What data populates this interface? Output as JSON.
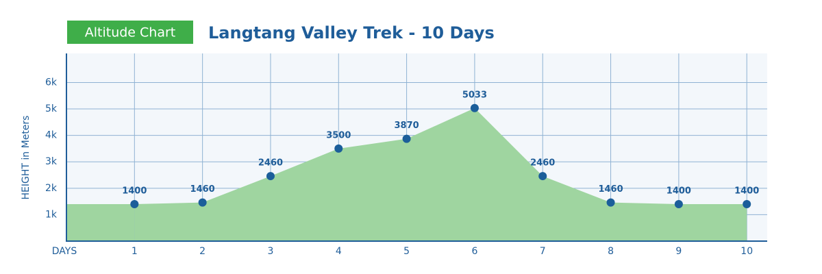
{
  "chart_data": {
    "type": "area",
    "badge": "Altitude Chart",
    "title": "Langtang Valley Trek - 10 Days",
    "y_label": "HEIGHT in Meters",
    "x_label": "DAYS",
    "x": [
      1,
      2,
      3,
      4,
      5,
      6,
      7,
      8,
      9,
      10
    ],
    "values": [
      1400,
      1460,
      2460,
      3500,
      3870,
      5033,
      2460,
      1460,
      1400,
      1400
    ],
    "color": "#9fd5a0",
    "marker_color": "#1b5e9a",
    "xlim": [
      0,
      10.3
    ],
    "ylim": [
      0,
      7100
    ],
    "yticks": [
      {
        "value": 1000,
        "label": "1k"
      },
      {
        "value": 2000,
        "label": "2k"
      },
      {
        "value": 3000,
        "label": "3k"
      },
      {
        "value": 4000,
        "label": "4k"
      },
      {
        "value": 5000,
        "label": "5k"
      },
      {
        "value": 6000,
        "label": "6k"
      }
    ],
    "grid": true
  }
}
